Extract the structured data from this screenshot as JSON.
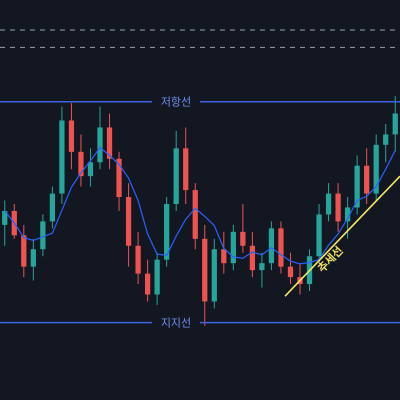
{
  "chart_data": {
    "type": "candlestick",
    "title": "",
    "xlabel": "",
    "ylabel": "",
    "ylim": [
      0,
      100
    ],
    "grid": false,
    "colors": {
      "background": "#131722",
      "up": "#26a69a",
      "down": "#ef5350",
      "moving_average": "#2962ff",
      "level_line": "#3f63e0",
      "trend_line": "#f5e663",
      "dashed_line": "#9aa0ab"
    },
    "levels": {
      "resistance": {
        "label": "저항선",
        "value": 79.4
      },
      "support": {
        "label": "지지선",
        "value": 15.9
      }
    },
    "dashed_levels": [
      100,
      95
    ],
    "trendline": {
      "label": "추세선",
      "x": [
        0,
        40
      ],
      "y": [
        23.5,
        58
      ]
    },
    "moving_average_period": 5,
    "candles": [
      {
        "o": 44,
        "h": 51,
        "l": 38,
        "c": 48
      },
      {
        "o": 48,
        "h": 50,
        "l": 40,
        "c": 41
      },
      {
        "o": 41,
        "h": 44,
        "l": 29,
        "c": 32
      },
      {
        "o": 32,
        "h": 40,
        "l": 28,
        "c": 37
      },
      {
        "o": 37,
        "h": 47,
        "l": 35,
        "c": 45
      },
      {
        "o": 45,
        "h": 55,
        "l": 43,
        "c": 53
      },
      {
        "o": 53,
        "h": 78,
        "l": 50,
        "c": 74
      },
      {
        "o": 74,
        "h": 79,
        "l": 60,
        "c": 65
      },
      {
        "o": 65,
        "h": 70,
        "l": 55,
        "c": 58
      },
      {
        "o": 58,
        "h": 66,
        "l": 55,
        "c": 62
      },
      {
        "o": 62,
        "h": 78,
        "l": 60,
        "c": 72
      },
      {
        "o": 72,
        "h": 76,
        "l": 60,
        "c": 63
      },
      {
        "o": 63,
        "h": 65,
        "l": 48,
        "c": 52
      },
      {
        "o": 52,
        "h": 56,
        "l": 32,
        "c": 38
      },
      {
        "o": 38,
        "h": 42,
        "l": 27,
        "c": 30
      },
      {
        "o": 30,
        "h": 34,
        "l": 22,
        "c": 24
      },
      {
        "o": 24,
        "h": 36,
        "l": 21,
        "c": 34
      },
      {
        "o": 34,
        "h": 52,
        "l": 32,
        "c": 50
      },
      {
        "o": 50,
        "h": 71,
        "l": 48,
        "c": 66
      },
      {
        "o": 66,
        "h": 72,
        "l": 50,
        "c": 54
      },
      {
        "o": 54,
        "h": 56,
        "l": 37,
        "c": 40
      },
      {
        "o": 40,
        "h": 44,
        "l": 15,
        "c": 22
      },
      {
        "o": 22,
        "h": 40,
        "l": 20,
        "c": 37
      },
      {
        "o": 37,
        "h": 42,
        "l": 30,
        "c": 33
      },
      {
        "o": 33,
        "h": 44,
        "l": 31,
        "c": 42
      },
      {
        "o": 42,
        "h": 50,
        "l": 36,
        "c": 38
      },
      {
        "o": 38,
        "h": 42,
        "l": 29,
        "c": 31
      },
      {
        "o": 31,
        "h": 36,
        "l": 26,
        "c": 33
      },
      {
        "o": 33,
        "h": 45,
        "l": 31,
        "c": 43
      },
      {
        "o": 43,
        "h": 45,
        "l": 30,
        "c": 32
      },
      {
        "o": 32,
        "h": 36,
        "l": 27,
        "c": 29
      },
      {
        "o": 29,
        "h": 33,
        "l": 24,
        "c": 27
      },
      {
        "o": 27,
        "h": 37,
        "l": 25,
        "c": 35
      },
      {
        "o": 35,
        "h": 50,
        "l": 33,
        "c": 47
      },
      {
        "o": 47,
        "h": 56,
        "l": 45,
        "c": 53
      },
      {
        "o": 53,
        "h": 56,
        "l": 42,
        "c": 45
      },
      {
        "o": 45,
        "h": 52,
        "l": 40,
        "c": 49
      },
      {
        "o": 49,
        "h": 64,
        "l": 47,
        "c": 61
      },
      {
        "o": 61,
        "h": 66,
        "l": 50,
        "c": 53
      },
      {
        "o": 53,
        "h": 70,
        "l": 51,
        "c": 67
      },
      {
        "o": 67,
        "h": 73,
        "l": 62,
        "c": 70
      },
      {
        "o": 70,
        "h": 81,
        "l": 65,
        "c": 76
      }
    ]
  }
}
